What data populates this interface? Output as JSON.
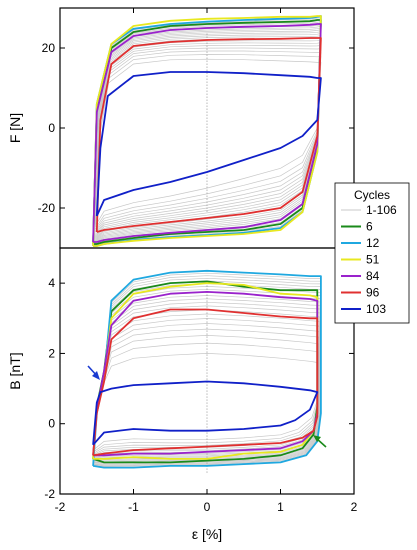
{
  "chart_data": [
    {
      "type": "line",
      "panel": "top",
      "ylabel": "F [N]",
      "xlim": [
        -2,
        2
      ],
      "ylim": [
        -30,
        30
      ],
      "yticks": [
        -20,
        0,
        20
      ],
      "ytick_labels": [
        "-20",
        "0",
        "20"
      ],
      "grid": false,
      "series": [
        {
          "name": "6",
          "color": "#1a8a1a",
          "x": [
            -1.55,
            -1.5,
            -1.3,
            -1.0,
            -0.5,
            0,
            0.5,
            1.0,
            1.4,
            1.5,
            1.55,
            1.5,
            1.3,
            1.0,
            0.5,
            0,
            -0.5,
            -1.0,
            -1.4,
            -1.5,
            -1.55
          ],
          "y": [
            -29,
            5,
            20,
            24,
            25.5,
            26,
            26.3,
            26.5,
            26.7,
            27,
            27,
            -5,
            -20,
            -24,
            -25.5,
            -26,
            -26.5,
            -27.5,
            -28.5,
            -29,
            -29
          ]
        },
        {
          "name": "12",
          "color": "#1fa8e0",
          "x": [
            -1.55,
            -1.5,
            -1.3,
            -1.0,
            -0.5,
            0,
            0.5,
            1.0,
            1.4,
            1.5,
            1.55,
            1.5,
            1.3,
            1.0,
            0.5,
            0,
            -0.5,
            -1.0,
            -1.4,
            -1.5,
            -1.55
          ],
          "y": [
            -29.5,
            6,
            21,
            24.8,
            26,
            26.6,
            27,
            27.3,
            27.5,
            27.8,
            28,
            -6,
            -21,
            -25,
            -26.2,
            -26.8,
            -27.3,
            -28,
            -29,
            -29.5,
            -29.5
          ]
        },
        {
          "name": "51",
          "color": "#e8e820",
          "x": [
            -1.55,
            -1.5,
            -1.3,
            -1.0,
            -0.5,
            0,
            0.5,
            1.0,
            1.4,
            1.5,
            1.55,
            1.5,
            1.3,
            1.0,
            0.5,
            0,
            -0.5,
            -1.0,
            -1.4,
            -1.5,
            -1.55
          ],
          "y": [
            -29.5,
            6,
            21,
            25.5,
            26.8,
            27.3,
            27.5,
            27.8,
            27.8,
            28,
            28,
            -6,
            -21,
            -25.5,
            -26.5,
            -27,
            -27.5,
            -28.2,
            -29,
            -29.5,
            -29.5
          ]
        },
        {
          "name": "84",
          "color": "#9a22cc",
          "x": [
            -1.55,
            -1.5,
            -1.3,
            -1.0,
            -0.5,
            0,
            0.5,
            1.0,
            1.4,
            1.5,
            1.55,
            1.5,
            1.3,
            1.0,
            0.5,
            0,
            -0.5,
            -1.0,
            -1.4,
            -1.5,
            -1.55
          ],
          "y": [
            -28.5,
            4,
            19,
            23,
            24.5,
            25,
            25.3,
            25.5,
            25.8,
            26,
            26,
            -4,
            -19,
            -23,
            -24.8,
            -25.5,
            -26.2,
            -27,
            -28,
            -28.5,
            -28.5
          ]
        },
        {
          "name": "96",
          "color": "#e03030",
          "x": [
            -1.5,
            -1.45,
            -1.3,
            -1.0,
            -0.5,
            0,
            0.5,
            1.0,
            1.4,
            1.5,
            1.55,
            1.5,
            1.3,
            1.0,
            0.5,
            0,
            -0.5,
            -1.0,
            -1.4,
            -1.5,
            -1.5
          ],
          "y": [
            -26,
            2,
            16,
            20.5,
            21.5,
            22,
            22.2,
            22.3,
            22.5,
            22.5,
            22.5,
            -2,
            -16,
            -20,
            -21.5,
            -22.5,
            -23.5,
            -24.5,
            -25.5,
            -26,
            -26
          ]
        },
        {
          "name": "103",
          "color": "#1020c8",
          "x": [
            -1.5,
            -1.45,
            -1.35,
            -1.0,
            -0.5,
            0,
            0.5,
            1.0,
            1.4,
            1.5,
            1.55,
            1.5,
            1.3,
            1.0,
            0.5,
            0,
            -0.5,
            -1.0,
            -1.4,
            -1.5,
            -1.5
          ],
          "y": [
            -22,
            -5,
            8,
            13,
            14,
            14,
            13.7,
            13.2,
            12.8,
            12.5,
            12.5,
            2,
            -2,
            -5,
            -8,
            -11,
            -13.5,
            -15.5,
            -18,
            -22,
            -22
          ]
        }
      ]
    },
    {
      "type": "line",
      "panel": "bottom",
      "xlabel": "ε [%]",
      "ylabel": "B [nT]",
      "xlim": [
        -2,
        2
      ],
      "ylim": [
        -2,
        5
      ],
      "xticks": [
        -2,
        -1,
        0,
        1,
        2
      ],
      "xtick_labels": [
        "-2",
        "-1",
        "0",
        "1",
        "2"
      ],
      "yticks": [
        -2,
        0,
        2,
        4
      ],
      "ytick_labels": [
        "-2",
        "0",
        "2",
        "4"
      ],
      "grid": false,
      "series": [
        {
          "name": "6",
          "color": "#1a8a1a",
          "x": [
            -1.55,
            -1.5,
            -1.4,
            -1.3,
            -1.0,
            -0.5,
            0,
            0.5,
            1.0,
            1.4,
            1.5,
            1.5,
            1.45,
            1.3,
            1.0,
            0.5,
            0,
            -0.5,
            -1.0,
            -1.4,
            -1.55
          ],
          "y": [
            -1.0,
            0.5,
            1.5,
            3.2,
            3.8,
            4.0,
            4.05,
            3.9,
            3.8,
            3.8,
            3.8,
            0.5,
            -0.3,
            -0.7,
            -0.9,
            -1.0,
            -1.05,
            -1.1,
            -1.1,
            -1.1,
            -1.0
          ]
        },
        {
          "name": "12",
          "color": "#1fa8e0",
          "x": [
            -1.55,
            -1.5,
            -1.4,
            -1.3,
            -1.0,
            -0.5,
            0,
            0.5,
            1.0,
            1.4,
            1.55,
            1.55,
            1.5,
            1.35,
            1.0,
            0.5,
            0,
            -0.5,
            -1.0,
            -1.4,
            -1.55
          ],
          "y": [
            -1.2,
            0.3,
            1.3,
            3.5,
            4.1,
            4.3,
            4.35,
            4.3,
            4.25,
            4.2,
            4.2,
            0.3,
            -0.5,
            -0.9,
            -1.1,
            -1.15,
            -1.2,
            -1.2,
            -1.25,
            -1.25,
            -1.2
          ]
        },
        {
          "name": "51",
          "color": "#e8e820",
          "x": [
            -1.55,
            -1.5,
            -1.4,
            -1.3,
            -1.0,
            -0.5,
            0,
            0.5,
            1.0,
            1.4,
            1.5,
            1.5,
            1.45,
            1.3,
            1.0,
            0.5,
            0,
            -0.5,
            -1.0,
            -1.4,
            -1.55
          ],
          "y": [
            -1.0,
            0.4,
            1.4,
            3.0,
            3.7,
            3.9,
            4.0,
            3.95,
            3.7,
            3.65,
            3.6,
            0.3,
            -0.2,
            -0.6,
            -0.8,
            -0.85,
            -1.0,
            -1.0,
            -0.95,
            -1.0,
            -1.0
          ]
        },
        {
          "name": "84",
          "color": "#9a22cc",
          "x": [
            -1.55,
            -1.5,
            -1.4,
            -1.3,
            -1.0,
            -0.5,
            0,
            0.5,
            1.0,
            1.4,
            1.5,
            1.5,
            1.45,
            1.3,
            1.0,
            0.5,
            0,
            -0.5,
            -1.0,
            -1.4,
            -1.55
          ],
          "y": [
            -0.9,
            0.4,
            1.5,
            2.8,
            3.5,
            3.7,
            3.75,
            3.7,
            3.6,
            3.55,
            3.5,
            0.3,
            -0.2,
            -0.5,
            -0.7,
            -0.75,
            -0.8,
            -0.85,
            -0.85,
            -0.9,
            -0.9
          ]
        },
        {
          "name": "96",
          "color": "#e03030",
          "x": [
            -1.55,
            -1.5,
            -1.4,
            -1.3,
            -1.0,
            -0.5,
            0,
            0.5,
            1.0,
            1.4,
            1.5,
            1.5,
            1.45,
            1.3,
            1.0,
            0.5,
            0,
            -0.5,
            -1.0,
            -1.4,
            -1.55
          ],
          "y": [
            -0.9,
            0.3,
            1.2,
            2.4,
            3.0,
            3.25,
            3.25,
            3.15,
            3.05,
            3.0,
            3.0,
            0.2,
            -0.2,
            -0.4,
            -0.55,
            -0.6,
            -0.65,
            -0.7,
            -0.75,
            -0.85,
            -0.9
          ]
        },
        {
          "name": "103",
          "color": "#1020c8",
          "x": [
            -1.55,
            -1.5,
            -1.45,
            -1.3,
            -1.0,
            -0.5,
            0,
            0.5,
            1.0,
            1.4,
            1.5,
            1.5,
            1.4,
            1.2,
            1.0,
            0.5,
            0,
            -0.5,
            -1.0,
            -1.4,
            -1.55
          ],
          "y": [
            -0.6,
            0.6,
            0.9,
            1.0,
            1.1,
            1.15,
            1.2,
            1.15,
            1.05,
            0.95,
            0.9,
            0.9,
            0.4,
            0.1,
            -0.05,
            -0.15,
            -0.2,
            -0.2,
            -0.15,
            -0.25,
            -0.6
          ]
        }
      ]
    }
  ],
  "legend": {
    "title": "Cycles",
    "entries": [
      {
        "label": "1-106",
        "color": "#c8c8c8"
      },
      {
        "label": "6",
        "color": "#1a8a1a"
      },
      {
        "label": "12",
        "color": "#1fa8e0"
      },
      {
        "label": "51",
        "color": "#e8e820"
      },
      {
        "label": "84",
        "color": "#9a22cc"
      },
      {
        "label": "96",
        "color": "#e03030"
      },
      {
        "label": "103",
        "color": "#1020c8"
      }
    ]
  },
  "annotations": {
    "arrow_blue_color": "#1a3ad0",
    "arrow_green_color": "#1a8a1a"
  }
}
